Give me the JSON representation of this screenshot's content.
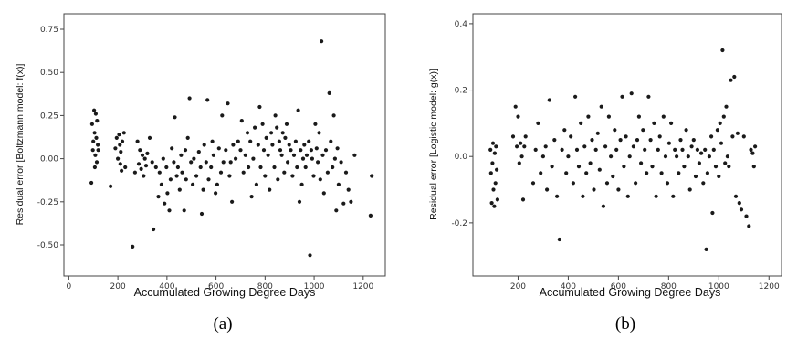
{
  "chart_data": [
    {
      "type": "scatter",
      "caption": "(a)",
      "xlabel": "Accumulated Growing Degree Days",
      "ylabel": "Residual error [Boltzmann model: f(x)]",
      "xlim": [
        -20,
        1290
      ],
      "ylim": [
        -0.68,
        0.84
      ],
      "xticks": [
        0,
        200,
        400,
        600,
        800,
        1000,
        1200
      ],
      "xtick_labels": [
        "0",
        "200",
        "400",
        "600",
        "800",
        "1000",
        "1200"
      ],
      "yticks": [
        -0.5,
        -0.25,
        0,
        0.25,
        0.5,
        0.75
      ],
      "ytick_labels": [
        "-0.50",
        "-0.25",
        "0.00",
        "0.25",
        "0.50",
        "0.75"
      ],
      "grid": false,
      "points": [
        [
          92,
          -0.14
        ],
        [
          95,
          0.2
        ],
        [
          98,
          0.05
        ],
        [
          100,
          0.1
        ],
        [
          103,
          0.28
        ],
        [
          105,
          0.15
        ],
        [
          106,
          -0.05
        ],
        [
          108,
          0.02
        ],
        [
          110,
          0.26
        ],
        [
          112,
          0.12
        ],
        [
          114,
          -0.02
        ],
        [
          115,
          0.22
        ],
        [
          118,
          0.08
        ],
        [
          120,
          0.05
        ],
        [
          170,
          -0.16
        ],
        [
          190,
          0.06
        ],
        [
          195,
          0.12
        ],
        [
          200,
          0.0
        ],
        [
          205,
          0.14
        ],
        [
          208,
          0.08
        ],
        [
          210,
          -0.03
        ],
        [
          212,
          0.04
        ],
        [
          215,
          -0.07
        ],
        [
          218,
          0.1
        ],
        [
          225,
          0.15
        ],
        [
          230,
          -0.05
        ],
        [
          260,
          -0.51
        ],
        [
          270,
          -0.08
        ],
        [
          280,
          0.1
        ],
        [
          285,
          -0.03
        ],
        [
          290,
          0.05
        ],
        [
          295,
          -0.06
        ],
        [
          300,
          0.02
        ],
        [
          305,
          -0.1
        ],
        [
          310,
          0.0
        ],
        [
          315,
          -0.04
        ],
        [
          320,
          0.03
        ],
        [
          330,
          0.12
        ],
        [
          340,
          -0.02
        ],
        [
          345,
          -0.41
        ],
        [
          355,
          -0.05
        ],
        [
          365,
          -0.22
        ],
        [
          370,
          -0.08
        ],
        [
          378,
          -0.15
        ],
        [
          385,
          0.0
        ],
        [
          390,
          -0.26
        ],
        [
          398,
          -0.05
        ],
        [
          402,
          -0.2
        ],
        [
          410,
          -0.3
        ],
        [
          415,
          -0.12
        ],
        [
          420,
          0.06
        ],
        [
          428,
          -0.02
        ],
        [
          432,
          0.24
        ],
        [
          440,
          -0.1
        ],
        [
          445,
          -0.05
        ],
        [
          452,
          -0.18
        ],
        [
          458,
          0.02
        ],
        [
          462,
          -0.08
        ],
        [
          470,
          -0.3
        ],
        [
          475,
          0.05
        ],
        [
          478,
          -0.12
        ],
        [
          485,
          0.12
        ],
        [
          492,
          0.35
        ],
        [
          498,
          -0.02
        ],
        [
          505,
          -0.15
        ],
        [
          510,
          0.0
        ],
        [
          520,
          -0.1
        ],
        [
          530,
          0.04
        ],
        [
          537,
          -0.05
        ],
        [
          542,
          -0.32
        ],
        [
          548,
          -0.18
        ],
        [
          552,
          0.08
        ],
        [
          560,
          -0.02
        ],
        [
          565,
          0.34
        ],
        [
          570,
          -0.12
        ],
        [
          580,
          -0.05
        ],
        [
          585,
          0.1
        ],
        [
          590,
          0.02
        ],
        [
          598,
          -0.2
        ],
        [
          605,
          -0.15
        ],
        [
          612,
          0.06
        ],
        [
          620,
          -0.08
        ],
        [
          625,
          0.25
        ],
        [
          630,
          -0.02
        ],
        [
          640,
          0.05
        ],
        [
          648,
          0.32
        ],
        [
          655,
          -0.1
        ],
        [
          660,
          -0.02
        ],
        [
          665,
          -0.25
        ],
        [
          670,
          0.08
        ],
        [
          680,
          0.0
        ],
        [
          690,
          0.1
        ],
        [
          700,
          0.05
        ],
        [
          705,
          0.22
        ],
        [
          712,
          -0.08
        ],
        [
          720,
          0.02
        ],
        [
          728,
          0.15
        ],
        [
          732,
          -0.05
        ],
        [
          740,
          0.1
        ],
        [
          745,
          -0.22
        ],
        [
          752,
          0.0
        ],
        [
          758,
          0.18
        ],
        [
          765,
          -0.15
        ],
        [
          772,
          0.08
        ],
        [
          778,
          0.3
        ],
        [
          782,
          -0.05
        ],
        [
          790,
          0.2
        ],
        [
          795,
          0.05
        ],
        [
          800,
          -0.1
        ],
        [
          805,
          0.12
        ],
        [
          812,
          0.02
        ],
        [
          818,
          -0.18
        ],
        [
          825,
          0.15
        ],
        [
          830,
          0.08
        ],
        [
          838,
          -0.05
        ],
        [
          842,
          0.25
        ],
        [
          848,
          0.18
        ],
        [
          852,
          -0.12
        ],
        [
          858,
          0.1
        ],
        [
          862,
          0.05
        ],
        [
          868,
          0.02
        ],
        [
          872,
          0.15
        ],
        [
          878,
          -0.08
        ],
        [
          882,
          0.12
        ],
        [
          888,
          0.2
        ],
        [
          892,
          -0.02
        ],
        [
          898,
          0.08
        ],
        [
          905,
          0.05
        ],
        [
          912,
          -0.1
        ],
        [
          918,
          0.02
        ],
        [
          925,
          0.1
        ],
        [
          930,
          -0.05
        ],
        [
          935,
          0.28
        ],
        [
          940,
          -0.25
        ],
        [
          945,
          0.05
        ],
        [
          950,
          -0.15
        ],
        [
          955,
          0.0
        ],
        [
          960,
          0.08
        ],
        [
          965,
          -0.05
        ],
        [
          970,
          0.02
        ],
        [
          978,
          0.1
        ],
        [
          983,
          -0.56
        ],
        [
          988,
          0.05
        ],
        [
          992,
          0.0
        ],
        [
          998,
          -0.1
        ],
        [
          1005,
          0.2
        ],
        [
          1010,
          0.06
        ],
        [
          1015,
          -0.02
        ],
        [
          1020,
          0.15
        ],
        [
          1025,
          -0.12
        ],
        [
          1030,
          0.68
        ],
        [
          1035,
          0.02
        ],
        [
          1040,
          -0.2
        ],
        [
          1048,
          0.05
        ],
        [
          1055,
          -0.08
        ],
        [
          1062,
          0.38
        ],
        [
          1068,
          0.1
        ],
        [
          1075,
          -0.05
        ],
        [
          1080,
          0.25
        ],
        [
          1085,
          0.0
        ],
        [
          1090,
          -0.3
        ],
        [
          1095,
          0.06
        ],
        [
          1100,
          -0.15
        ],
        [
          1110,
          -0.02
        ],
        [
          1120,
          -0.26
        ],
        [
          1130,
          -0.08
        ],
        [
          1140,
          -0.18
        ],
        [
          1150,
          -0.25
        ],
        [
          1165,
          0.02
        ],
        [
          1230,
          -0.33
        ],
        [
          1235,
          -0.1
        ]
      ]
    },
    {
      "type": "scatter",
      "caption": "(b)",
      "xlabel": "Accumulated Growing Degree Days",
      "ylabel": "Residual error [Logistic model: g(x)]",
      "xlim": [
        20,
        1250
      ],
      "ylim": [
        -0.36,
        0.43
      ],
      "xticks": [
        200,
        400,
        600,
        800,
        1000,
        1200
      ],
      "xtick_labels": [
        "200",
        "400",
        "600",
        "800",
        "1000",
        "1200"
      ],
      "yticks": [
        -0.2,
        0,
        0.2,
        0.4
      ],
      "ytick_labels": [
        "-0.2",
        "0.0",
        "0.2",
        "0.4"
      ],
      "grid": false,
      "points": [
        [
          90,
          0.02
        ],
        [
          92,
          -0.05
        ],
        [
          95,
          -0.14
        ],
        [
          98,
          -0.02
        ],
        [
          100,
          0.04
        ],
        [
          102,
          -0.1
        ],
        [
          105,
          -0.15
        ],
        [
          107,
          0.01
        ],
        [
          110,
          -0.08
        ],
        [
          112,
          0.03
        ],
        [
          115,
          -0.04
        ],
        [
          118,
          -0.13
        ],
        [
          180,
          0.06
        ],
        [
          190,
          0.15
        ],
        [
          195,
          0.03
        ],
        [
          200,
          0.12
        ],
        [
          205,
          -0.02
        ],
        [
          210,
          0.04
        ],
        [
          215,
          0.0
        ],
        [
          220,
          -0.13
        ],
        [
          225,
          0.03
        ],
        [
          230,
          0.06
        ],
        [
          260,
          -0.08
        ],
        [
          270,
          0.02
        ],
        [
          280,
          0.1
        ],
        [
          290,
          -0.05
        ],
        [
          300,
          0.0
        ],
        [
          310,
          0.03
        ],
        [
          315,
          -0.1
        ],
        [
          325,
          0.17
        ],
        [
          335,
          -0.03
        ],
        [
          345,
          0.05
        ],
        [
          355,
          -0.12
        ],
        [
          365,
          -0.25
        ],
        [
          375,
          0.02
        ],
        [
          385,
          0.08
        ],
        [
          392,
          -0.05
        ],
        [
          400,
          0.0
        ],
        [
          410,
          0.06
        ],
        [
          420,
          -0.08
        ],
        [
          428,
          0.18
        ],
        [
          435,
          0.02
        ],
        [
          442,
          -0.03
        ],
        [
          450,
          0.1
        ],
        [
          458,
          -0.12
        ],
        [
          465,
          0.03
        ],
        [
          472,
          -0.05
        ],
        [
          480,
          0.12
        ],
        [
          488,
          -0.02
        ],
        [
          495,
          0.05
        ],
        [
          502,
          -0.1
        ],
        [
          510,
          0.02
        ],
        [
          518,
          0.07
        ],
        [
          525,
          -0.04
        ],
        [
          532,
          0.15
        ],
        [
          540,
          -0.15
        ],
        [
          548,
          0.03
        ],
        [
          555,
          -0.08
        ],
        [
          562,
          0.12
        ],
        [
          570,
          0.0
        ],
        [
          578,
          -0.06
        ],
        [
          585,
          0.08
        ],
        [
          592,
          0.02
        ],
        [
          600,
          -0.1
        ],
        [
          608,
          0.05
        ],
        [
          615,
          0.18
        ],
        [
          622,
          -0.03
        ],
        [
          630,
          0.06
        ],
        [
          638,
          -0.12
        ],
        [
          645,
          0.0
        ],
        [
          652,
          0.19
        ],
        [
          660,
          0.03
        ],
        [
          668,
          -0.08
        ],
        [
          675,
          0.05
        ],
        [
          682,
          0.12
        ],
        [
          690,
          -0.02
        ],
        [
          698,
          0.08
        ],
        [
          705,
          0.02
        ],
        [
          712,
          -0.05
        ],
        [
          720,
          0.18
        ],
        [
          728,
          0.05
        ],
        [
          735,
          -0.03
        ],
        [
          742,
          0.1
        ],
        [
          750,
          -0.12
        ],
        [
          758,
          0.02
        ],
        [
          765,
          0.06
        ],
        [
          772,
          -0.05
        ],
        [
          780,
          0.12
        ],
        [
          788,
          0.0
        ],
        [
          795,
          -0.08
        ],
        [
          802,
          0.04
        ],
        [
          810,
          0.1
        ],
        [
          818,
          -0.12
        ],
        [
          825,
          0.02
        ],
        [
          832,
          0.0
        ],
        [
          840,
          -0.05
        ],
        [
          848,
          0.05
        ],
        [
          855,
          0.02
        ],
        [
          862,
          -0.03
        ],
        [
          870,
          0.08
        ],
        [
          878,
          0.0
        ],
        [
          885,
          -0.1
        ],
        [
          892,
          0.03
        ],
        [
          900,
          0.05
        ],
        [
          908,
          -0.06
        ],
        [
          915,
          0.02
        ],
        [
          922,
          -0.02
        ],
        [
          930,
          0.01
        ],
        [
          938,
          -0.08
        ],
        [
          945,
          0.02
        ],
        [
          950,
          -0.28
        ],
        [
          955,
          -0.05
        ],
        [
          962,
          0.0
        ],
        [
          970,
          0.06
        ],
        [
          975,
          -0.17
        ],
        [
          980,
          0.02
        ],
        [
          988,
          -0.03
        ],
        [
          995,
          0.08
        ],
        [
          1000,
          -0.06
        ],
        [
          1005,
          0.1
        ],
        [
          1010,
          0.04
        ],
        [
          1015,
          0.32
        ],
        [
          1020,
          0.12
        ],
        [
          1025,
          -0.02
        ],
        [
          1030,
          0.15
        ],
        [
          1035,
          0.0
        ],
        [
          1040,
          -0.03
        ],
        [
          1048,
          0.23
        ],
        [
          1055,
          0.06
        ],
        [
          1062,
          0.24
        ],
        [
          1068,
          -0.12
        ],
        [
          1075,
          0.07
        ],
        [
          1082,
          -0.14
        ],
        [
          1090,
          -0.16
        ],
        [
          1100,
          0.06
        ],
        [
          1110,
          -0.18
        ],
        [
          1120,
          -0.21
        ],
        [
          1128,
          0.02
        ],
        [
          1135,
          0.01
        ],
        [
          1140,
          -0.03
        ],
        [
          1145,
          0.03
        ]
      ]
    }
  ]
}
